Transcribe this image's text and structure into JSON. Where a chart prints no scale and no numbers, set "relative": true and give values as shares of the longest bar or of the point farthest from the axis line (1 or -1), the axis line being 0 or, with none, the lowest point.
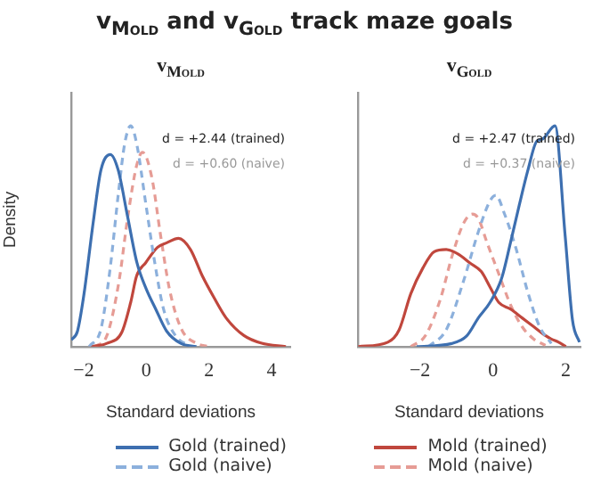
{
  "chart_data": [
    {
      "type": "line",
      "title": "v$_{Mold}$ and v$_{Gold}$ track maze goals",
      "subtitle": "v$_{Mold}$",
      "xlabel": "Standard deviations",
      "ylabel": "Density",
      "relative": true,
      "legend": "bottom",
      "marker": "none",
      "xlim": [
        -2.4,
        4.6
      ],
      "xticks": [
        {
          "value": -2,
          "label": "−2"
        },
        0,
        2,
        4
      ],
      "annotations": [
        "d = +2.44 (trained)",
        "d = +0.60 (naive)"
      ],
      "series": [
        {
          "name": "Gold (trained)",
          "color": "#3d6fb0",
          "line_style": "solid",
          "x": [
            -2.4,
            -2.2,
            -2.0,
            -1.7,
            -1.45,
            -1.15,
            -0.9,
            -0.6,
            -0.3,
            0,
            0.3,
            0.65,
            1.1,
            1.6
          ],
          "values": [
            0.03,
            0.07,
            0.23,
            0.56,
            0.8,
            0.87,
            0.8,
            0.59,
            0.38,
            0.26,
            0.17,
            0.07,
            0.015,
            0
          ]
        },
        {
          "name": "Gold (naive)",
          "color": "#8cb0dc",
          "line_style": "dashed",
          "x": [
            -1.83,
            -1.45,
            -1.16,
            -0.88,
            -0.69,
            -0.5,
            -0.31,
            -0.02,
            0.27,
            0.55,
            0.93,
            1.41
          ],
          "values": [
            0,
            0.08,
            0.35,
            0.71,
            0.92,
            1.0,
            0.92,
            0.65,
            0.38,
            0.17,
            0.05,
            0
          ]
        },
        {
          "name": "Mold (trained)",
          "color": "#c0473d",
          "line_style": "solid",
          "x": [
            -1.83,
            -1.26,
            -0.78,
            -0.5,
            -0.31,
            -0.02,
            0.36,
            0.65,
            1.03,
            1.41,
            1.79,
            2.17,
            2.55,
            3.12,
            3.69,
            4.46
          ],
          "values": [
            0,
            0.015,
            0.066,
            0.2,
            0.32,
            0.38,
            0.45,
            0.47,
            0.49,
            0.44,
            0.32,
            0.22,
            0.13,
            0.05,
            0.015,
            0
          ]
        },
        {
          "name": "Mold (naive)",
          "color": "#e69c95",
          "line_style": "dashed",
          "x": [
            -1.64,
            -1.26,
            -0.88,
            -0.59,
            -0.31,
            -0.12,
            0.17,
            0.46,
            0.74,
            1.12,
            1.6,
            1.98
          ],
          "values": [
            0,
            0.05,
            0.29,
            0.59,
            0.82,
            0.88,
            0.77,
            0.5,
            0.26,
            0.08,
            0.015,
            0
          ]
        }
      ]
    },
    {
      "type": "line",
      "subtitle": "v$_{Gold}$",
      "xlabel": "Standard deviations",
      "relative": true,
      "legend": "bottom",
      "marker": "none",
      "xlim": [
        -3.7,
        2.4
      ],
      "xticks": [
        {
          "value": -2,
          "label": "−2"
        },
        0,
        2
      ],
      "annotations": [
        "d = +2.47 (trained)",
        "d = +0.37 (naive)"
      ],
      "series": [
        {
          "name": "Gold (trained)",
          "color": "#3d6fb0",
          "line_style": "solid",
          "x": [
            -2.09,
            -1.13,
            -0.72,
            -0.4,
            -0.08,
            0.24,
            0.48,
            0.72,
            0.96,
            1.2,
            1.36,
            1.7,
            1.98,
            2.18,
            2.37
          ],
          "values": [
            0,
            0.014,
            0.048,
            0.13,
            0.2,
            0.31,
            0.47,
            0.64,
            0.8,
            0.93,
            0.94,
            1.0,
            0.5,
            0.12,
            0.02
          ]
        },
        {
          "name": "Gold (naive)",
          "color": "#8cb0dc",
          "line_style": "dashed",
          "x": [
            -1.77,
            -1.28,
            -0.8,
            -0.4,
            -0.08,
            0.08,
            0.32,
            0.64,
            0.96,
            1.28,
            1.6
          ],
          "values": [
            0,
            0.076,
            0.3,
            0.52,
            0.66,
            0.685,
            0.6,
            0.44,
            0.244,
            0.09,
            0.014
          ]
        },
        {
          "name": "Mold (trained)",
          "color": "#c0473d",
          "line_style": "solid",
          "x": [
            -3.69,
            -2.88,
            -2.57,
            -2.25,
            -1.92,
            -1.61,
            -1.28,
            -0.96,
            -0.64,
            -0.32,
            -0.08,
            0.16,
            0.48,
            0.8,
            1.12,
            1.44,
            1.6,
            1.8,
            2.0
          ],
          "values": [
            0,
            0.02,
            0.076,
            0.24,
            0.356,
            0.43,
            0.44,
            0.42,
            0.38,
            0.34,
            0.27,
            0.2,
            0.17,
            0.13,
            0.09,
            0.05,
            0.034,
            0.02,
            0
          ]
        },
        {
          "name": "Mold (naive)",
          "color": "#e69c95",
          "line_style": "dashed",
          "x": [
            -2.25,
            -1.85,
            -1.44,
            -1.12,
            -0.8,
            -0.56,
            -0.4,
            -0.16,
            0.16,
            0.48,
            0.8,
            1.12,
            1.44
          ],
          "values": [
            0,
            0.05,
            0.215,
            0.41,
            0.56,
            0.6,
            0.58,
            0.47,
            0.33,
            0.19,
            0.09,
            0.034,
            0.006
          ]
        }
      ]
    }
  ]
}
